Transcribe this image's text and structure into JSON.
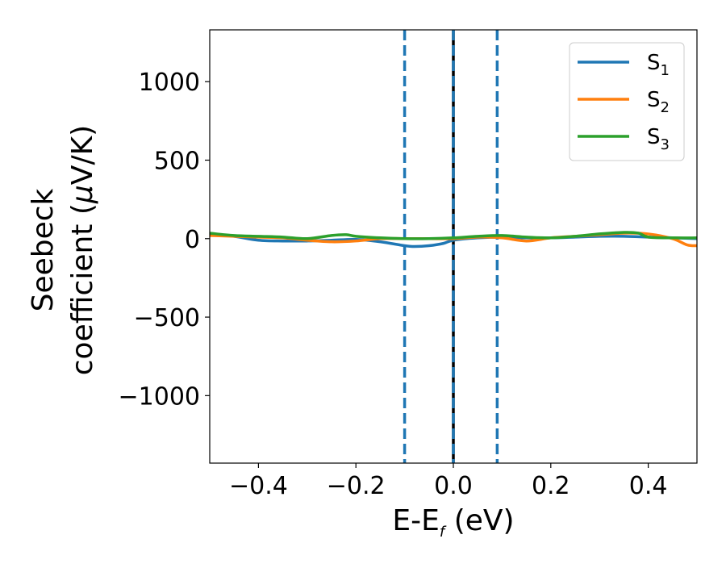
{
  "chart_data": {
    "type": "line",
    "xlabel": "E-E",
    "xlabel_sub": "f",
    "xlabel_unit": " (eV)",
    "ylabel_line1": "Seebeck",
    "ylabel_line2": "coefficient  (",
    "ylabel_mu": "μ",
    "ylabel_unit": "V/K)",
    "xlim": [
      -0.5,
      0.5
    ],
    "ylim": [
      -1430,
      1330
    ],
    "xticks": [
      -0.4,
      -0.2,
      0.0,
      0.2,
      0.4
    ],
    "xtick_labels": [
      "−0.4",
      "−0.2",
      "0.0",
      "0.2",
      "0.4"
    ],
    "yticks": [
      -1000,
      -500,
      0,
      500,
      1000
    ],
    "ytick_labels": [
      "−1000",
      "−500",
      "0",
      "500",
      "1000"
    ],
    "grid": false,
    "legend_position": "top-right",
    "series": [
      {
        "name": "S",
        "sub": "1",
        "color": "#1f77b4",
        "x": [
          -0.5,
          -0.45,
          -0.4,
          -0.35,
          -0.3,
          -0.25,
          -0.2,
          -0.15,
          -0.1,
          -0.08,
          -0.05,
          -0.02,
          0.0,
          0.05,
          0.1,
          0.15,
          0.2,
          0.25,
          0.3,
          0.35,
          0.4,
          0.45,
          0.5
        ],
        "y": [
          30,
          15,
          -10,
          -15,
          -15,
          -10,
          -5,
          -20,
          -45,
          -50,
          -45,
          -30,
          -10,
          5,
          10,
          5,
          5,
          10,
          15,
          15,
          10,
          5,
          0
        ]
      },
      {
        "name": "S",
        "sub": "2",
        "color": "#ff7f0e",
        "x": [
          -0.5,
          -0.45,
          -0.4,
          -0.35,
          -0.3,
          -0.25,
          -0.2,
          -0.15,
          -0.1,
          -0.05,
          0.0,
          0.05,
          0.1,
          0.15,
          0.2,
          0.25,
          0.3,
          0.35,
          0.4,
          0.45,
          0.48,
          0.5
        ],
        "y": [
          20,
          15,
          10,
          5,
          -10,
          -20,
          -15,
          0,
          0,
          0,
          0,
          10,
          5,
          -15,
          5,
          15,
          25,
          35,
          30,
          0,
          -40,
          -45
        ]
      },
      {
        "name": "S",
        "sub": "3",
        "color": "#2ca02c",
        "x": [
          -0.5,
          -0.45,
          -0.4,
          -0.35,
          -0.3,
          -0.25,
          -0.22,
          -0.2,
          -0.15,
          -0.1,
          -0.05,
          0.0,
          0.05,
          0.1,
          0.15,
          0.2,
          0.25,
          0.3,
          0.35,
          0.38,
          0.4,
          0.45,
          0.5
        ],
        "y": [
          35,
          20,
          15,
          10,
          0,
          20,
          25,
          15,
          5,
          0,
          0,
          5,
          15,
          20,
          10,
          5,
          15,
          30,
          40,
          35,
          10,
          5,
          5
        ]
      }
    ],
    "vlines": [
      {
        "x": -0.1,
        "style": "dashed",
        "color": "#1f77b4"
      },
      {
        "x": 0.0,
        "style": "solid",
        "color": "#000000"
      },
      {
        "x": 0.0,
        "style": "dashed",
        "color": "#1f77b4"
      },
      {
        "x": 0.09,
        "style": "dashed",
        "color": "#1f77b4"
      }
    ]
  }
}
